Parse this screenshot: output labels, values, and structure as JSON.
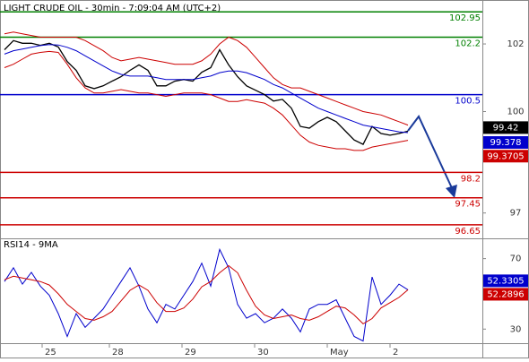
{
  "chart_data": [
    {
      "type": "line",
      "title": "LIGHT CRUDE OIL - 30min - 7:09:04 AM (UTC+2)",
      "x": [
        0,
        1,
        2,
        3,
        4,
        5,
        6,
        7,
        8,
        9,
        10,
        11,
        12,
        13,
        14,
        15,
        16,
        17,
        18,
        19,
        20,
        21,
        22,
        23,
        24,
        25,
        26,
        27,
        28,
        29,
        30,
        31,
        32,
        33,
        34,
        35,
        36,
        37,
        38,
        39,
        40,
        41,
        42,
        43,
        44,
        45
      ],
      "series": [
        {
          "color": "#000000",
          "values": [
            101.83,
            102.1,
            102.02,
            102.02,
            101.96,
            102.02,
            101.91,
            101.48,
            101.22,
            100.76,
            100.68,
            100.76,
            100.9,
            101.03,
            101.22,
            101.38,
            101.22,
            100.76,
            100.76,
            100.9,
            100.95,
            100.9,
            101.16,
            101.3,
            101.83,
            101.38,
            101.03,
            100.76,
            100.63,
            100.5,
            100.31,
            100.36,
            100.1,
            99.56,
            99.51,
            99.7,
            99.83,
            99.7,
            99.43,
            99.16,
            99.03,
            99.56,
            99.35,
            99.3,
            99.35,
            99.42
          ]
        },
        {
          "color": "#0000cc",
          "values": [
            101.7,
            101.8,
            101.85,
            101.9,
            101.95,
            101.98,
            101.97,
            101.9,
            101.8,
            101.65,
            101.5,
            101.35,
            101.2,
            101.1,
            101.05,
            101.05,
            101.05,
            101.0,
            100.95,
            100.95,
            100.95,
            100.95,
            101.0,
            101.05,
            101.15,
            101.2,
            101.2,
            101.15,
            101.05,
            100.95,
            100.8,
            100.7,
            100.55,
            100.4,
            100.25,
            100.1,
            100.0,
            99.9,
            99.8,
            99.7,
            99.6,
            99.55,
            99.5,
            99.45,
            99.4,
            99.378
          ]
        },
        {
          "color": "#cc0000",
          "values": [
            102.3,
            102.35,
            102.3,
            102.25,
            102.2,
            102.2,
            102.2,
            102.2,
            102.2,
            102.1,
            101.95,
            101.8,
            101.6,
            101.5,
            101.55,
            101.6,
            101.55,
            101.5,
            101.45,
            101.4,
            101.4,
            101.4,
            101.5,
            101.7,
            102.0,
            102.2,
            102.1,
            101.9,
            101.6,
            101.3,
            101.0,
            100.8,
            100.7,
            100.7,
            100.6,
            100.5,
            100.4,
            100.3,
            100.2,
            100.1,
            100.0,
            99.95,
            99.9,
            99.8,
            99.7,
            99.6
          ]
        },
        {
          "color": "#cc0000",
          "values": [
            101.3,
            101.4,
            101.55,
            101.7,
            101.75,
            101.78,
            101.75,
            101.4,
            101.0,
            100.7,
            100.55,
            100.55,
            100.6,
            100.65,
            100.6,
            100.55,
            100.55,
            100.5,
            100.45,
            100.5,
            100.55,
            100.55,
            100.55,
            100.5,
            100.4,
            100.3,
            100.3,
            100.35,
            100.3,
            100.25,
            100.1,
            99.9,
            99.6,
            99.3,
            99.1,
            99.0,
            98.95,
            98.9,
            98.9,
            98.85,
            98.85,
            98.95,
            99.0,
            99.05,
            99.1,
            99.15
          ]
        }
      ],
      "levels": [
        {
          "value": 102.95,
          "color": "#008000"
        },
        {
          "value": 102.2,
          "color": "#008000"
        },
        {
          "value": 100.5,
          "color": "#0000cc"
        },
        {
          "value": 98.2,
          "color": "#cc0000"
        },
        {
          "value": 97.45,
          "color": "#cc0000"
        },
        {
          "value": 96.65,
          "color": "#cc0000"
        }
      ],
      "price_tags": [
        {
          "value": 99.42,
          "color": "#000000"
        },
        {
          "value": 99.378,
          "color": "#0000cc"
        },
        {
          "value": 99.3705,
          "color": "#cc0000"
        }
      ],
      "xlim": [
        -0.5,
        53.3
      ],
      "ylim": [
        96.25,
        103.3
      ],
      "yticks": [
        97,
        100,
        102
      ]
    },
    {
      "type": "line",
      "title": "RSI14 - 9MA",
      "x": [
        0,
        1,
        2,
        3,
        4,
        5,
        6,
        7,
        8,
        9,
        10,
        11,
        12,
        13,
        14,
        15,
        16,
        17,
        18,
        19,
        20,
        21,
        22,
        23,
        24,
        25,
        26,
        27,
        28,
        29,
        30,
        31,
        32,
        33,
        34,
        35,
        36,
        37,
        38,
        39,
        40,
        41,
        42,
        43,
        44,
        45
      ],
      "series": [
        {
          "color": "#0000cc",
          "values": [
            57.0,
            64.8,
            55.5,
            62.2,
            54.4,
            49.2,
            38.8,
            25.8,
            38.8,
            31.0,
            36.2,
            41.4,
            49.2,
            57.0,
            64.8,
            54.4,
            41.4,
            33.6,
            44.0,
            41.4,
            49.2,
            57.0,
            67.4,
            54.4,
            75.2,
            64.8,
            44.0,
            36.2,
            38.8,
            33.6,
            36.2,
            41.4,
            36.2,
            28.4,
            41.4,
            44.0,
            44.0,
            46.6,
            36.2,
            25.8,
            23.2,
            59.6,
            44.0,
            49.2,
            55.5,
            52.3305
          ]
        },
        {
          "color": "#cc0000",
          "values": [
            58,
            60,
            59,
            58,
            57,
            55,
            50,
            44,
            40,
            36,
            35,
            37,
            40,
            46,
            52,
            55,
            52,
            45,
            40,
            40,
            42,
            47,
            54,
            57,
            62,
            66,
            62,
            52,
            43,
            38,
            36,
            37,
            38,
            36,
            35,
            37,
            40,
            43,
            42,
            38,
            33,
            36,
            42,
            45,
            48,
            52.2896
          ]
        }
      ],
      "price_tags": [
        {
          "value": 52.3305,
          "color": "#0000cc"
        },
        {
          "value": 52.2896,
          "color": "#cc0000"
        }
      ],
      "xlim": [
        -0.5,
        53.3
      ],
      "ylim": [
        22,
        81
      ],
      "yticks": [
        30,
        70
      ],
      "xticks": [
        {
          "value": 4.2,
          "label": "25"
        },
        {
          "value": 11.7,
          "label": "28"
        },
        {
          "value": 19.8,
          "label": "29"
        },
        {
          "value": 27.9,
          "label": "30"
        },
        {
          "value": 36,
          "label": "May"
        },
        {
          "value": 43,
          "label": "2"
        }
      ]
    }
  ]
}
